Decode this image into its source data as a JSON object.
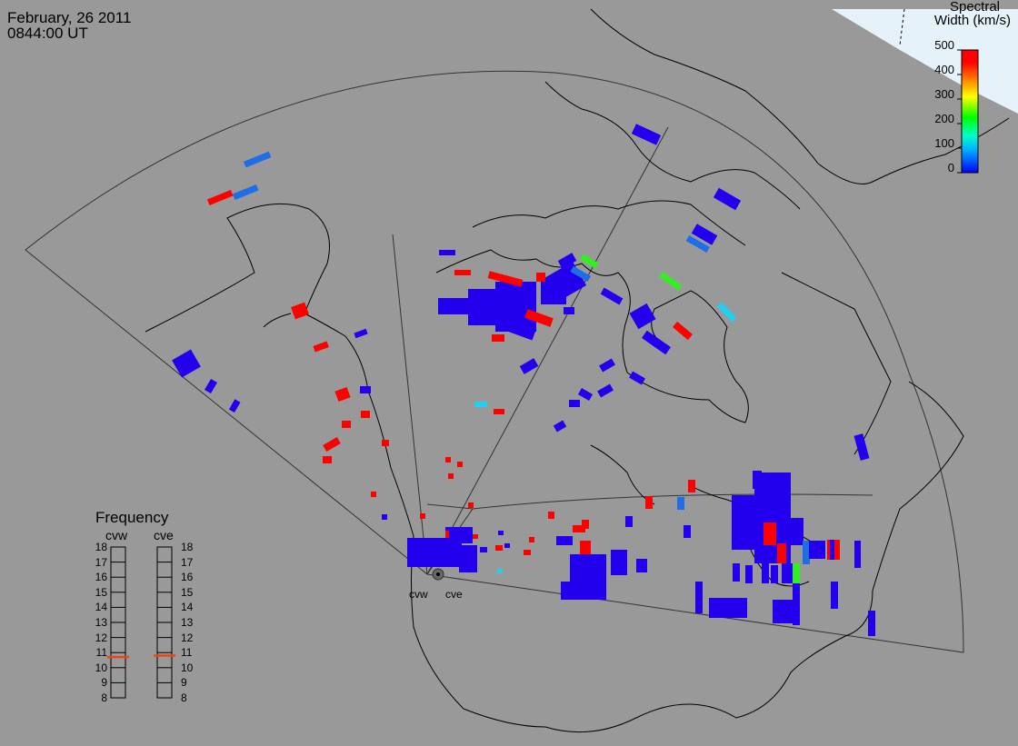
{
  "header": {
    "date": "February, 26 2011",
    "time": "0844:00 UT"
  },
  "colorbar": {
    "title_line1": "Spectral",
    "title_line2": "Width (km/s)",
    "ticks": [
      "500",
      "400",
      "300",
      "200",
      "100",
      "0"
    ],
    "range": [
      0,
      500
    ],
    "colors": [
      "#0000ff",
      "#00aaff",
      "#00ffcc",
      "#00ff00",
      "#ffff00",
      "#ff8800",
      "#ff0000"
    ]
  },
  "frequency_panel": {
    "title": "Frequency",
    "radars": [
      "cvw",
      "cve"
    ],
    "ticks": [
      "18",
      "17",
      "16",
      "15",
      "14",
      "13",
      "12",
      "11",
      "10",
      "9",
      "8"
    ],
    "range_mhz": [
      8,
      18
    ],
    "cvw_value_mhz": 10.7,
    "cve_value_mhz": 10.8
  },
  "stations": [
    "cvw",
    "cve"
  ],
  "colors": {
    "background": "#999999",
    "low_width": "#2200ee",
    "mid_low": "#1e6ee8",
    "cyan": "#22cfee",
    "green": "#33ee22",
    "high_width": "#ff0000",
    "polar_cap": "#e6f2fa",
    "freq_marker": "#ee4411"
  }
}
